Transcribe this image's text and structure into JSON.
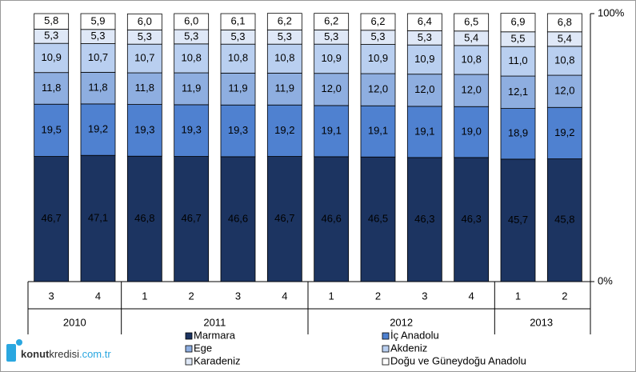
{
  "chart_data": {
    "type": "stacked_bar",
    "categories": [
      "3",
      "4",
      "1",
      "2",
      "3",
      "4",
      "1",
      "2",
      "3",
      "4",
      "1",
      "2"
    ],
    "year_labels": [
      "2010",
      null,
      "2011",
      null,
      null,
      null,
      "2012",
      null,
      null,
      null,
      "2013",
      null
    ],
    "ylim": [
      0,
      100
    ],
    "yticks": [
      {
        "value": 0,
        "label": "0%"
      },
      {
        "value": 100,
        "label": "100%"
      }
    ],
    "series": [
      {
        "name": "Marmara",
        "color": "#1c3461",
        "values": [
          46.7,
          47.1,
          46.8,
          46.7,
          46.6,
          46.7,
          46.6,
          46.5,
          46.3,
          46.3,
          45.7,
          45.8
        ],
        "value_labels": [
          "46,7",
          "47,1",
          "46,8",
          "46,7",
          "46,6",
          "46,7",
          "46,6",
          "46,5",
          "46,3",
          "46,3",
          "45,7",
          "45,8"
        ]
      },
      {
        "name": "İç Anadolu",
        "color": "#4f81d0",
        "values": [
          19.5,
          19.2,
          19.3,
          19.3,
          19.3,
          19.2,
          19.1,
          19.1,
          19.1,
          19.0,
          18.9,
          19.2
        ],
        "value_labels": [
          "19,5",
          "19,2",
          "19,3",
          "19,3",
          "19,3",
          "19,2",
          "19,1",
          "19,1",
          "19,1",
          "19,0",
          "18,9",
          "19,2"
        ]
      },
      {
        "name": "Ege",
        "color": "#8eaee0",
        "values": [
          11.8,
          11.8,
          11.8,
          11.9,
          11.9,
          11.9,
          12.0,
          12.0,
          12.0,
          12.0,
          12.1,
          12.0
        ],
        "value_labels": [
          "11,8",
          "11,8",
          "11,8",
          "11,9",
          "11,9",
          "11,9",
          "12,0",
          "12,0",
          "12,0",
          "12,0",
          "12,1",
          "12,0"
        ]
      },
      {
        "name": "Akdeniz",
        "color": "#b9cff0",
        "values": [
          10.9,
          10.7,
          10.7,
          10.8,
          10.8,
          10.8,
          10.9,
          10.9,
          10.9,
          10.8,
          11.0,
          10.8
        ],
        "value_labels": [
          "10,9",
          "10,7",
          "10,7",
          "10,8",
          "10,8",
          "10,8",
          "10,9",
          "10,9",
          "10,9",
          "10,8",
          "11,0",
          "10,8"
        ]
      },
      {
        "name": "Karadeniz",
        "color": "#dfe8f7",
        "values": [
          5.3,
          5.3,
          5.3,
          5.3,
          5.3,
          5.3,
          5.3,
          5.3,
          5.3,
          5.4,
          5.5,
          5.4
        ],
        "value_labels": [
          "5,3",
          "5,3",
          "5,3",
          "5,3",
          "5,3",
          "5,3",
          "5,3",
          "5,3",
          "5,3",
          "5,4",
          "5,5",
          "5,4"
        ]
      },
      {
        "name": "Doğu ve Güneydoğu Anadolu",
        "color": "#ffffff",
        "values": [
          5.8,
          5.9,
          6.0,
          6.0,
          6.1,
          6.2,
          6.2,
          6.2,
          6.4,
          6.5,
          6.9,
          6.8
        ],
        "value_labels": [
          "5,8",
          "5,9",
          "6,0",
          "6,0",
          "6,1",
          "6,2",
          "6,2",
          "6,2",
          "6,4",
          "6,5",
          "6,9",
          "6,8"
        ]
      }
    ],
    "logo": [
      "konut",
      "kredisi",
      ".com.tr"
    ]
  }
}
